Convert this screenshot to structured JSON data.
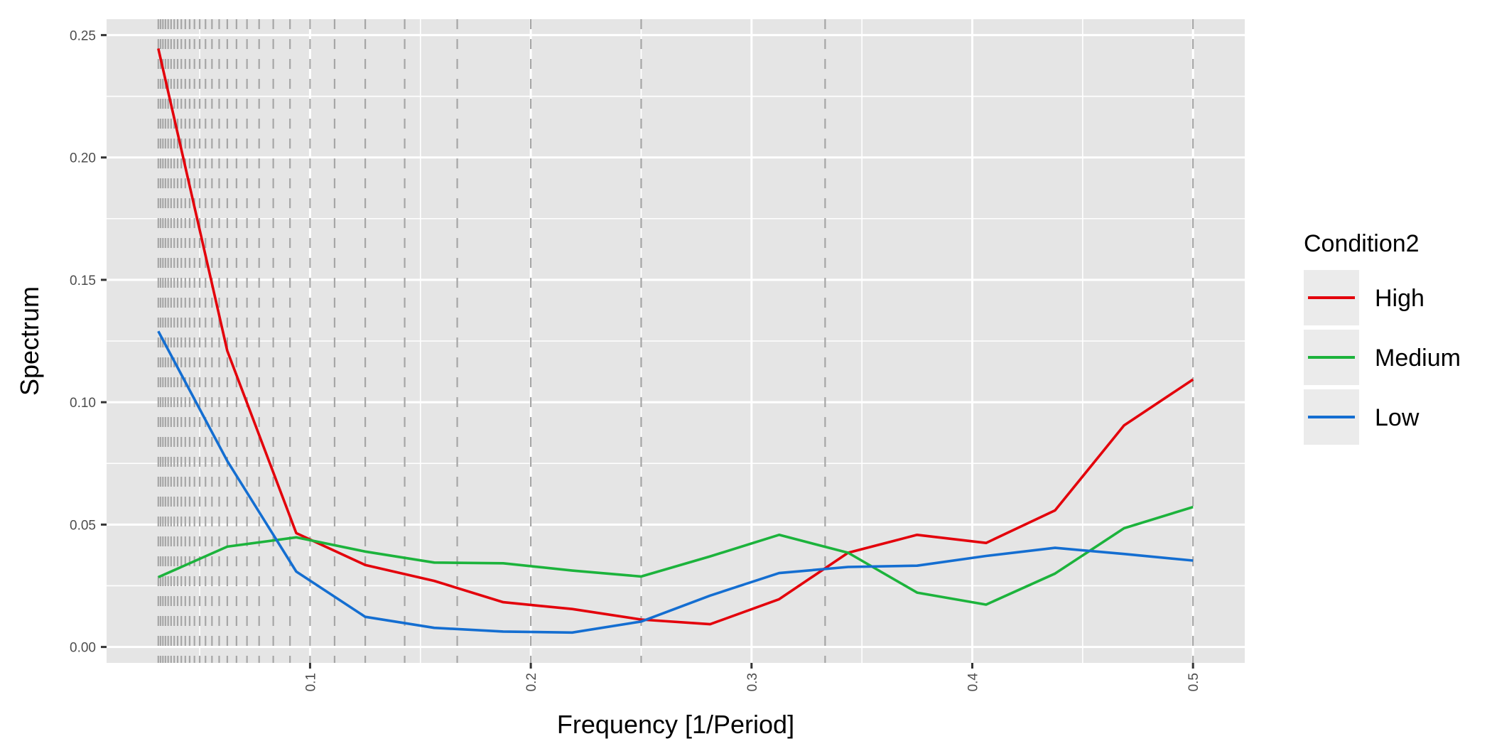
{
  "chart_data": {
    "type": "line",
    "xlabel": "Frequency [1/Period]",
    "ylabel": "Spectrum",
    "xlim": [
      0.0078125,
      0.5234375
    ],
    "ylim": [
      -0.0065,
      0.2565
    ],
    "x_ticks": [
      {
        "value": 0.1,
        "label": "0.1"
      },
      {
        "value": 0.2,
        "label": "0.2"
      },
      {
        "value": 0.3,
        "label": "0.3"
      },
      {
        "value": 0.4,
        "label": "0.4"
      },
      {
        "value": 0.5,
        "label": "0.5"
      }
    ],
    "y_ticks": [
      {
        "value": 0.0,
        "label": "0.00"
      },
      {
        "value": 0.05,
        "label": "0.05"
      },
      {
        "value": 0.1,
        "label": "0.10"
      },
      {
        "value": 0.15,
        "label": "0.15"
      },
      {
        "value": 0.2,
        "label": "0.20"
      },
      {
        "value": 0.25,
        "label": "0.25"
      }
    ],
    "grid": true,
    "reference_lines": {
      "style": "dashed",
      "color": "#a6a6a6",
      "x": [
        0.03125,
        0.03226,
        0.03333,
        0.03448,
        0.03571,
        0.03704,
        0.03846,
        0.04,
        0.04167,
        0.04348,
        0.04545,
        0.04762,
        0.05,
        0.05263,
        0.05556,
        0.05882,
        0.0625,
        0.06667,
        0.07143,
        0.07692,
        0.08333,
        0.09091,
        0.1,
        0.11111,
        0.125,
        0.14286,
        0.16667,
        0.2,
        0.25,
        0.33333,
        0.5
      ]
    },
    "x": [
      0.03125,
      0.0625,
      0.09375,
      0.125,
      0.15625,
      0.1875,
      0.21875,
      0.25,
      0.28125,
      0.3125,
      0.34375,
      0.375,
      0.40625,
      0.4375,
      0.46875,
      0.5
    ],
    "series": [
      {
        "name": "High",
        "color": "#e3000b",
        "values": [
          0.2445,
          0.121,
          0.0465,
          0.0335,
          0.027,
          0.0183,
          0.0155,
          0.0112,
          0.0093,
          0.0195,
          0.0385,
          0.0458,
          0.0425,
          0.0558,
          0.0905,
          0.1093
        ]
      },
      {
        "name": "Medium",
        "color": "#1cb33c",
        "values": [
          0.0285,
          0.041,
          0.0448,
          0.039,
          0.0345,
          0.0342,
          0.0312,
          0.0288,
          0.037,
          0.0458,
          0.0385,
          0.0222,
          0.0173,
          0.03,
          0.0485,
          0.0572
        ]
      },
      {
        "name": "Low",
        "color": "#146ed1",
        "values": [
          0.129,
          0.076,
          0.0308,
          0.0123,
          0.0078,
          0.0063,
          0.0059,
          0.0104,
          0.021,
          0.0302,
          0.0327,
          0.0332,
          0.0372,
          0.0405,
          0.038,
          0.0353
        ]
      }
    ],
    "legend": {
      "title": "Condition2",
      "placement": "right"
    }
  }
}
